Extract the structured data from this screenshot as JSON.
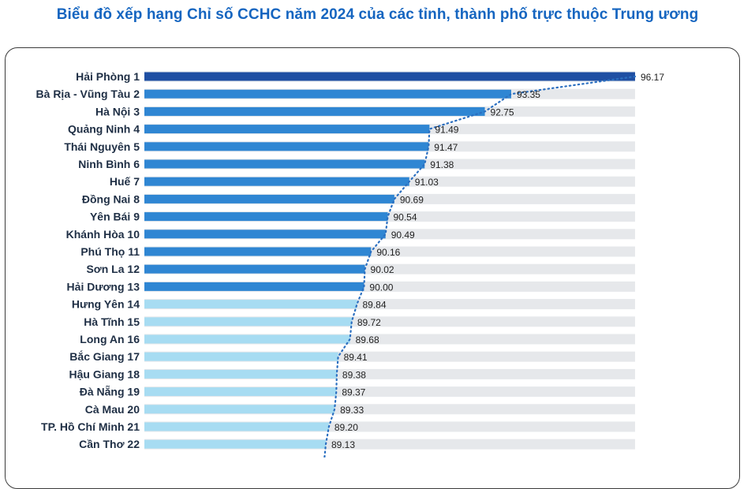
{
  "title": "Biểu đồ xếp hạng Chỉ số CCHC năm 2024 của các tỉnh, thành phố trực thuộc Trung ương",
  "colors": {
    "title": "#1565c0",
    "top1": "#1f4fa3",
    "upper": "#2f86d3",
    "lower": "#a7dcf2",
    "track": "#e6e8eb",
    "trend": "#2b6fc0"
  },
  "chart_data": {
    "type": "bar",
    "orientation": "horizontal",
    "title": "Biểu đồ xếp hạng Chỉ số CCHC năm 2024 của các tỉnh, thành phố trực thuộc Trung ương",
    "categories": [
      "Hải Phòng  1",
      "Bà Rịa - Vũng Tàu  2",
      "Hà Nội  3",
      "Quảng Ninh  4",
      "Thái Nguyên  5",
      "Ninh Bình  6",
      "Huế  7",
      "Đồng Nai  8",
      "Yên Bái  9",
      "Khánh Hòa  10",
      "Phú Thọ 11",
      "Sơn La 12",
      "Hải Dương 13",
      "Hưng Yên 14",
      "Hà Tĩnh 15",
      "Long An 16",
      "Bắc Giang 17",
      "Hậu Giang 18",
      "Đà Nẵng 19",
      "Cà Mau 20",
      "TP. Hồ Chí Minh 21",
      "Cần Thơ 22"
    ],
    "values": [
      96.17,
      93.35,
      92.75,
      91.49,
      91.47,
      91.38,
      91.03,
      90.69,
      90.54,
      90.49,
      90.16,
      90.02,
      90.0,
      89.84,
      89.72,
      89.68,
      89.41,
      89.38,
      89.37,
      89.33,
      89.2,
      89.13
    ],
    "value_labels": [
      "96.17",
      "93.35",
      "92.75",
      "91.49",
      "91.47",
      "91.38",
      "91.03",
      "90.69",
      "90.54",
      "90.49",
      "90.16",
      "90.02",
      "90.00",
      "89.84",
      "89.72",
      "89.68",
      "89.41",
      "89.38",
      "89.37",
      "89.33",
      "89.20",
      "89.13"
    ],
    "xlim": [
      85,
      96.17
    ],
    "grid": false,
    "legend": "none",
    "trend_line": "dotted"
  }
}
